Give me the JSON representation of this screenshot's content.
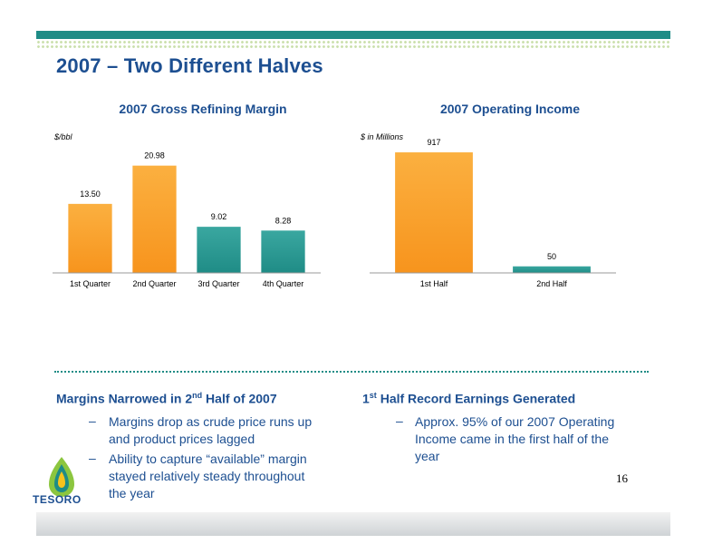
{
  "slide": {
    "title": "2007 – Two Different Halves",
    "page_number": "16",
    "logo_text": "TESORO"
  },
  "colors": {
    "brand_blue": "#1d4f91",
    "teal": "#1f8c86",
    "orange": "#f7941d"
  },
  "chart_data": [
    {
      "type": "bar",
      "title": "2007 Gross Refining Margin",
      "ylabel": "$/bbl",
      "categories": [
        "1st Quarter",
        "2nd Quarter",
        "3rd Quarter",
        "4th Quarter"
      ],
      "values": [
        13.5,
        20.98,
        9.02,
        8.28
      ],
      "value_labels": [
        "13.50",
        "20.98",
        "9.02",
        "8.28"
      ],
      "bar_colors": [
        "orange",
        "orange",
        "teal",
        "teal"
      ],
      "ylim": [
        0,
        25
      ],
      "grid": false
    },
    {
      "type": "bar",
      "title": "2007 Operating Income",
      "ylabel": "$ in Millions",
      "categories": [
        "1st Half",
        "2nd Half"
      ],
      "values": [
        917,
        50
      ],
      "value_labels": [
        "917",
        "50"
      ],
      "bar_colors": [
        "orange",
        "teal"
      ],
      "ylim": [
        0,
        1000
      ],
      "grid": false
    }
  ],
  "left_column": {
    "heading_pre": "Margins Narrowed in 2",
    "heading_sup": "nd",
    "heading_post": " Half of 2007",
    "bullets": [
      {
        "line1": "Margins drop as crude price runs up",
        "line2": "and product prices lagged"
      },
      {
        "line1": "Ability to capture “available” margin",
        "line2": "stayed relatively steady throughout",
        "line3": "the year"
      }
    ]
  },
  "right_column": {
    "heading_pre": "1",
    "heading_sup": "st",
    "heading_post": " Half Record Earnings Generated",
    "bullets": [
      {
        "line1": "Approx. 95% of our 2007 Operating",
        "line2": "Income came in the first half of the",
        "line3": "year"
      }
    ]
  }
}
